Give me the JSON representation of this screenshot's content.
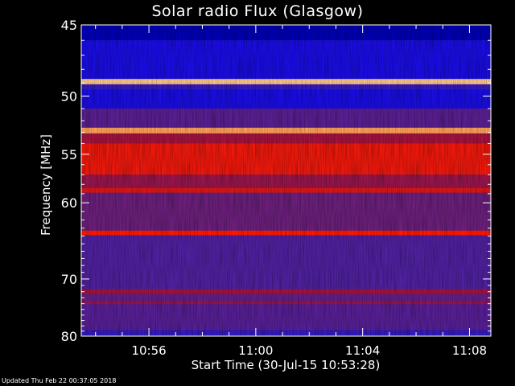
{
  "chart_data": {
    "type": "heatmap",
    "title": "Solar radio Flux (Glasgow)",
    "xlabel": "Start Time (30-Jul-15 10:53:28)",
    "ylabel": "Frequency [MHz]",
    "start_time_minutes": 653.467,
    "xlim_minutes": [
      653.467,
      668.8
    ],
    "x_ticks": [
      {
        "minutes": 656,
        "label": "10:56"
      },
      {
        "minutes": 660,
        "label": "11:00"
      },
      {
        "minutes": 664,
        "label": "11:04"
      },
      {
        "minutes": 668,
        "label": "11:08"
      }
    ],
    "ylim_mhz": [
      45,
      80
    ],
    "y_scale": "reciprocal",
    "y_ticks": [
      45,
      50,
      55,
      60,
      70,
      80
    ],
    "colormap": [
      "#000040",
      "#0000a0",
      "#0000ff",
      "#4020b0",
      "#6a1f7a",
      "#b01030",
      "#ff1a00",
      "#ff8c40",
      "#fff0c0"
    ],
    "intensity_bands": [
      {
        "freq_mhz": [
          45.0,
          46.0
        ],
        "level": 0.15
      },
      {
        "freq_mhz": [
          46.0,
          48.7
        ],
        "level": 0.3
      },
      {
        "freq_mhz": [
          48.7,
          49.1
        ],
        "level": 0.95
      },
      {
        "freq_mhz": [
          49.1,
          49.5
        ],
        "level": 0.35
      },
      {
        "freq_mhz": [
          49.5,
          51.0
        ],
        "level": 0.3
      },
      {
        "freq_mhz": [
          51.0,
          52.6
        ],
        "level": 0.45
      },
      {
        "freq_mhz": [
          52.6,
          53.1
        ],
        "level": 0.9
      },
      {
        "freq_mhz": [
          53.1,
          54.0
        ],
        "level": 0.6
      },
      {
        "freq_mhz": [
          54.0,
          57.0
        ],
        "level": 0.72
      },
      {
        "freq_mhz": [
          57.0,
          58.4
        ],
        "level": 0.58
      },
      {
        "freq_mhz": [
          58.4,
          58.9
        ],
        "level": 0.7
      },
      {
        "freq_mhz": [
          58.9,
          63.3
        ],
        "level": 0.5
      },
      {
        "freq_mhz": [
          63.3,
          63.9
        ],
        "level": 0.75
      },
      {
        "freq_mhz": [
          63.9,
          71.6
        ],
        "level": 0.42
      },
      {
        "freq_mhz": [
          71.6,
          72.4
        ],
        "level": 0.6
      },
      {
        "freq_mhz": [
          72.4,
          73.6
        ],
        "level": 0.48
      },
      {
        "freq_mhz": [
          73.6,
          74.1
        ],
        "level": 0.58
      },
      {
        "freq_mhz": [
          74.1,
          78.8
        ],
        "level": 0.44
      },
      {
        "freq_mhz": [
          78.8,
          80.0
        ],
        "level": 0.35
      }
    ]
  },
  "updated_text": "Updated Thu Feb 22 00:37:05 2018"
}
